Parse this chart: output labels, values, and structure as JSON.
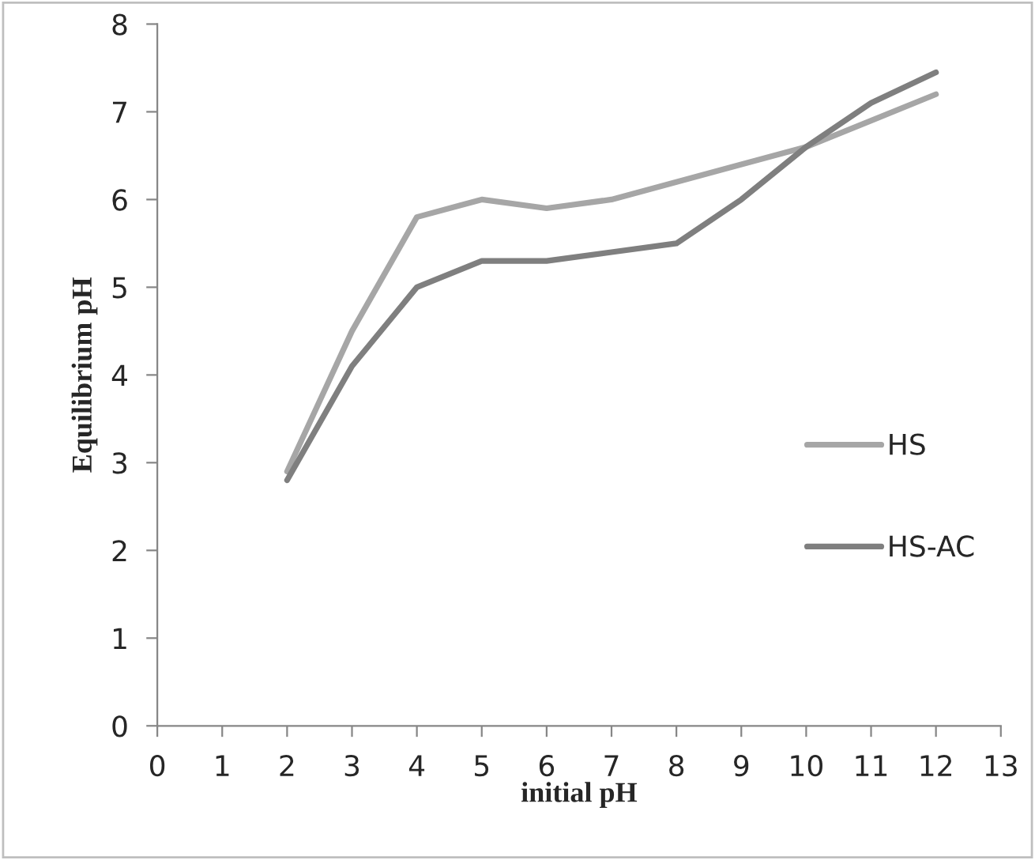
{
  "chart_data": {
    "type": "line",
    "xlabel": "initial pH",
    "ylabel": "Equilibrium pH",
    "x": [
      2,
      3,
      4,
      5,
      6,
      7,
      8,
      9,
      10,
      11,
      12
    ],
    "series": [
      {
        "name": "HS",
        "color": "#a6a6a6",
        "values": [
          2.9,
          4.5,
          5.8,
          6.0,
          5.9,
          6.0,
          6.2,
          6.4,
          6.6,
          6.9,
          7.2
        ]
      },
      {
        "name": "HS-AC",
        "color": "#7f7f7f",
        "values": [
          2.8,
          4.1,
          5.0,
          5.3,
          5.3,
          5.4,
          5.5,
          6.0,
          6.6,
          7.1,
          7.45
        ]
      }
    ],
    "xlim": [
      0,
      13
    ],
    "xticks": [
      0,
      1,
      2,
      3,
      4,
      5,
      6,
      7,
      8,
      9,
      10,
      11,
      12,
      13
    ],
    "ylim": [
      0,
      8
    ],
    "yticks": [
      0,
      1,
      2,
      3,
      4,
      5,
      6,
      7,
      8
    ],
    "grid": false,
    "legend": "right",
    "marker": "none",
    "line_style": "solid"
  }
}
